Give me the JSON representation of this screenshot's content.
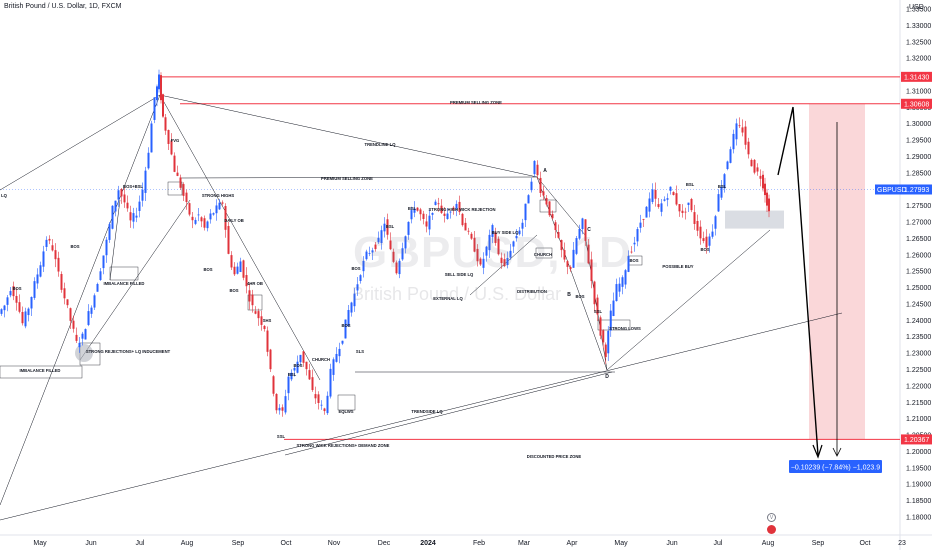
{
  "header": {
    "title": "British Pound / U.S. Dollar, 1D, FXCM"
  },
  "watermark": {
    "symbol": "GBPUSD, 1D",
    "name": "British Pound / U.S. Dollar"
  },
  "price_scale": {
    "unit": "USD"
  },
  "colors": {
    "bull": "#2962ff",
    "bear": "#e0333b",
    "level": "#f23645",
    "zone": "#f8c9cc",
    "band_badge": "#2962ff"
  },
  "chart_data": {
    "type": "candlestick",
    "symbol": "GBPUSD",
    "timeframe": "1D",
    "source": "FXCM",
    "x_ticks": [
      "May",
      "Jun",
      "Jul",
      "Aug",
      "Sep",
      "Oct",
      "Nov",
      "Dec",
      "2024",
      "Feb",
      "Mar",
      "Apr",
      "May",
      "Jun",
      "Jul",
      "Aug",
      "Sep",
      "Oct",
      "23"
    ],
    "y_ticks": [
      "1.33500",
      "1.33000",
      "1.32500",
      "1.32000",
      "1.31500",
      "1.31000",
      "1.30500",
      "1.30000",
      "1.29500",
      "1.29000",
      "1.28500",
      "1.28000",
      "1.27500",
      "1.27000",
      "1.26500",
      "1.26000",
      "1.25500",
      "1.25000",
      "1.24500",
      "1.24000",
      "1.23500",
      "1.23000",
      "1.22500",
      "1.22000",
      "1.21500",
      "1.21000",
      "1.20500",
      "1.20000",
      "1.19500",
      "1.19000",
      "1.18500",
      "1.18000"
    ],
    "ylim": [
      1.178,
      1.3395
    ],
    "price_labels": [
      {
        "value": "1.31430",
        "color": "#f23645"
      },
      {
        "value": "1.30608",
        "color": "#f23645"
      },
      {
        "value": "1.27993",
        "color": "#2962ff",
        "tag": "GBPUSD"
      },
      {
        "value": "1.20367",
        "color": "#f23645"
      }
    ],
    "projection_label": "−0.10239 (−7.84%) −1,023.9",
    "price_path": [
      {
        "x": 0,
        "y": 1.242
      },
      {
        "x": 6,
        "y": 1.2445
      },
      {
        "x": 12,
        "y": 1.25
      },
      {
        "x": 18,
        "y": 1.2465
      },
      {
        "x": 24,
        "y": 1.239
      },
      {
        "x": 30,
        "y": 1.244
      },
      {
        "x": 36,
        "y": 1.251
      },
      {
        "x": 42,
        "y": 1.2575
      },
      {
        "x": 48,
        "y": 1.265
      },
      {
        "x": 54,
        "y": 1.262
      },
      {
        "x": 60,
        "y": 1.254
      },
      {
        "x": 66,
        "y": 1.247
      },
      {
        "x": 72,
        "y": 1.24
      },
      {
        "x": 78,
        "y": 1.233
      },
      {
        "x": 84,
        "y": 1.235
      },
      {
        "x": 90,
        "y": 1.242
      },
      {
        "x": 96,
        "y": 1.248
      },
      {
        "x": 102,
        "y": 1.256
      },
      {
        "x": 108,
        "y": 1.264
      },
      {
        "x": 114,
        "y": 1.274
      },
      {
        "x": 120,
        "y": 1.28
      },
      {
        "x": 126,
        "y": 1.276
      },
      {
        "x": 132,
        "y": 1.27
      },
      {
        "x": 138,
        "y": 1.273
      },
      {
        "x": 144,
        "y": 1.28
      },
      {
        "x": 150,
        "y": 1.292
      },
      {
        "x": 156,
        "y": 1.308
      },
      {
        "x": 160,
        "y": 1.314
      },
      {
        "x": 164,
        "y": 1.302
      },
      {
        "x": 170,
        "y": 1.295
      },
      {
        "x": 176,
        "y": 1.286
      },
      {
        "x": 182,
        "y": 1.281
      },
      {
        "x": 188,
        "y": 1.275
      },
      {
        "x": 194,
        "y": 1.27
      },
      {
        "x": 200,
        "y": 1.272
      },
      {
        "x": 206,
        "y": 1.268
      },
      {
        "x": 212,
        "y": 1.272
      },
      {
        "x": 218,
        "y": 1.274
      },
      {
        "x": 224,
        "y": 1.276
      },
      {
        "x": 230,
        "y": 1.26
      },
      {
        "x": 236,
        "y": 1.254
      },
      {
        "x": 242,
        "y": 1.258
      },
      {
        "x": 248,
        "y": 1.25
      },
      {
        "x": 254,
        "y": 1.244
      },
      {
        "x": 260,
        "y": 1.241
      },
      {
        "x": 266,
        "y": 1.238
      },
      {
        "x": 272,
        "y": 1.224
      },
      {
        "x": 278,
        "y": 1.213
      },
      {
        "x": 284,
        "y": 1.212
      },
      {
        "x": 290,
        "y": 1.223
      },
      {
        "x": 296,
        "y": 1.225
      },
      {
        "x": 302,
        "y": 1.23
      },
      {
        "x": 308,
        "y": 1.225
      },
      {
        "x": 314,
        "y": 1.218
      },
      {
        "x": 320,
        "y": 1.215
      },
      {
        "x": 326,
        "y": 1.212
      },
      {
        "x": 332,
        "y": 1.224
      },
      {
        "x": 338,
        "y": 1.23
      },
      {
        "x": 344,
        "y": 1.235
      },
      {
        "x": 350,
        "y": 1.243
      },
      {
        "x": 356,
        "y": 1.248
      },
      {
        "x": 362,
        "y": 1.255
      },
      {
        "x": 368,
        "y": 1.26
      },
      {
        "x": 374,
        "y": 1.262
      },
      {
        "x": 380,
        "y": 1.264
      },
      {
        "x": 386,
        "y": 1.27
      },
      {
        "x": 392,
        "y": 1.261
      },
      {
        "x": 398,
        "y": 1.255
      },
      {
        "x": 404,
        "y": 1.263
      },
      {
        "x": 410,
        "y": 1.27
      },
      {
        "x": 416,
        "y": 1.275
      },
      {
        "x": 422,
        "y": 1.272
      },
      {
        "x": 428,
        "y": 1.268
      },
      {
        "x": 434,
        "y": 1.274
      },
      {
        "x": 440,
        "y": 1.276
      },
      {
        "x": 446,
        "y": 1.271
      },
      {
        "x": 452,
        "y": 1.274
      },
      {
        "x": 458,
        "y": 1.276
      },
      {
        "x": 464,
        "y": 1.27
      },
      {
        "x": 470,
        "y": 1.266
      },
      {
        "x": 476,
        "y": 1.262
      },
      {
        "x": 482,
        "y": 1.256
      },
      {
        "x": 488,
        "y": 1.262
      },
      {
        "x": 494,
        "y": 1.268
      },
      {
        "x": 500,
        "y": 1.26
      },
      {
        "x": 506,
        "y": 1.256
      },
      {
        "x": 512,
        "y": 1.262
      },
      {
        "x": 518,
        "y": 1.266
      },
      {
        "x": 524,
        "y": 1.27
      },
      {
        "x": 530,
        "y": 1.279
      },
      {
        "x": 536,
        "y": 1.288
      },
      {
        "x": 542,
        "y": 1.28
      },
      {
        "x": 548,
        "y": 1.276
      },
      {
        "x": 554,
        "y": 1.27
      },
      {
        "x": 560,
        "y": 1.264
      },
      {
        "x": 566,
        "y": 1.258
      },
      {
        "x": 572,
        "y": 1.256
      },
      {
        "x": 578,
        "y": 1.265
      },
      {
        "x": 584,
        "y": 1.27
      },
      {
        "x": 590,
        "y": 1.258
      },
      {
        "x": 596,
        "y": 1.246
      },
      {
        "x": 602,
        "y": 1.236
      },
      {
        "x": 607,
        "y": 1.23
      },
      {
        "x": 612,
        "y": 1.242
      },
      {
        "x": 618,
        "y": 1.25
      },
      {
        "x": 624,
        "y": 1.252
      },
      {
        "x": 630,
        "y": 1.26
      },
      {
        "x": 636,
        "y": 1.264
      },
      {
        "x": 642,
        "y": 1.27
      },
      {
        "x": 648,
        "y": 1.274
      },
      {
        "x": 654,
        "y": 1.279
      },
      {
        "x": 660,
        "y": 1.274
      },
      {
        "x": 666,
        "y": 1.277
      },
      {
        "x": 672,
        "y": 1.28
      },
      {
        "x": 678,
        "y": 1.276
      },
      {
        "x": 684,
        "y": 1.272
      },
      {
        "x": 690,
        "y": 1.276
      },
      {
        "x": 696,
        "y": 1.27
      },
      {
        "x": 702,
        "y": 1.266
      },
      {
        "x": 708,
        "y": 1.263
      },
      {
        "x": 714,
        "y": 1.268
      },
      {
        "x": 720,
        "y": 1.278
      },
      {
        "x": 726,
        "y": 1.285
      },
      {
        "x": 732,
        "y": 1.293
      },
      {
        "x": 738,
        "y": 1.299
      },
      {
        "x": 744,
        "y": 1.298
      },
      {
        "x": 750,
        "y": 1.29
      },
      {
        "x": 756,
        "y": 1.286
      },
      {
        "x": 762,
        "y": 1.284
      },
      {
        "x": 766,
        "y": 1.279
      },
      {
        "x": 770,
        "y": 1.273
      }
    ],
    "annotations": [
      {
        "text": "PREMIUM SELLING ZONE"
      },
      {
        "text": "TRENDLINE LQ"
      },
      {
        "text": "PREMIUM SELLING ZONE"
      },
      {
        "text": "STRONG HIGHS"
      },
      {
        "text": "STRONG HIGH WICK REJECTION"
      },
      {
        "text": "BUY SIDE LQ"
      },
      {
        "text": "SELL SIDE LQ"
      },
      {
        "text": "EXTERNAL LQ"
      },
      {
        "text": "DISTRIBUTION"
      },
      {
        "text": "CHURCH"
      },
      {
        "text": "CHURCH"
      },
      {
        "text": "POSSIBLE BUY"
      },
      {
        "text": "STRONG LOWS"
      },
      {
        "text": "TRENDSIDE LQ"
      },
      {
        "text": "STRONG WICK REJECTIONS+ DEMAND ZONE"
      },
      {
        "text": "DISCOUNTED PRICE ZONE"
      },
      {
        "text": "STRONG REJECTIONS+ LQ INDUCEMENT"
      },
      {
        "text": "IMBALANCE FILLED"
      },
      {
        "text": "IMBALANCE FILLED"
      },
      {
        "text": "BOS+BSL"
      },
      {
        "text": "BOS"
      },
      {
        "text": "FVG"
      },
      {
        "text": "DAILY OB"
      },
      {
        "text": "4HR OB"
      },
      {
        "text": "SHS"
      },
      {
        "text": "EQLWS"
      },
      {
        "text": "SLS"
      },
      {
        "text": "SSL"
      },
      {
        "text": "SSL"
      },
      {
        "text": "BSL"
      },
      {
        "text": "BSL"
      },
      {
        "text": "LQ"
      }
    ],
    "markers": [
      {
        "text": "A"
      },
      {
        "text": "B"
      },
      {
        "text": "C"
      },
      {
        "text": "D"
      }
    ],
    "grid": true
  }
}
